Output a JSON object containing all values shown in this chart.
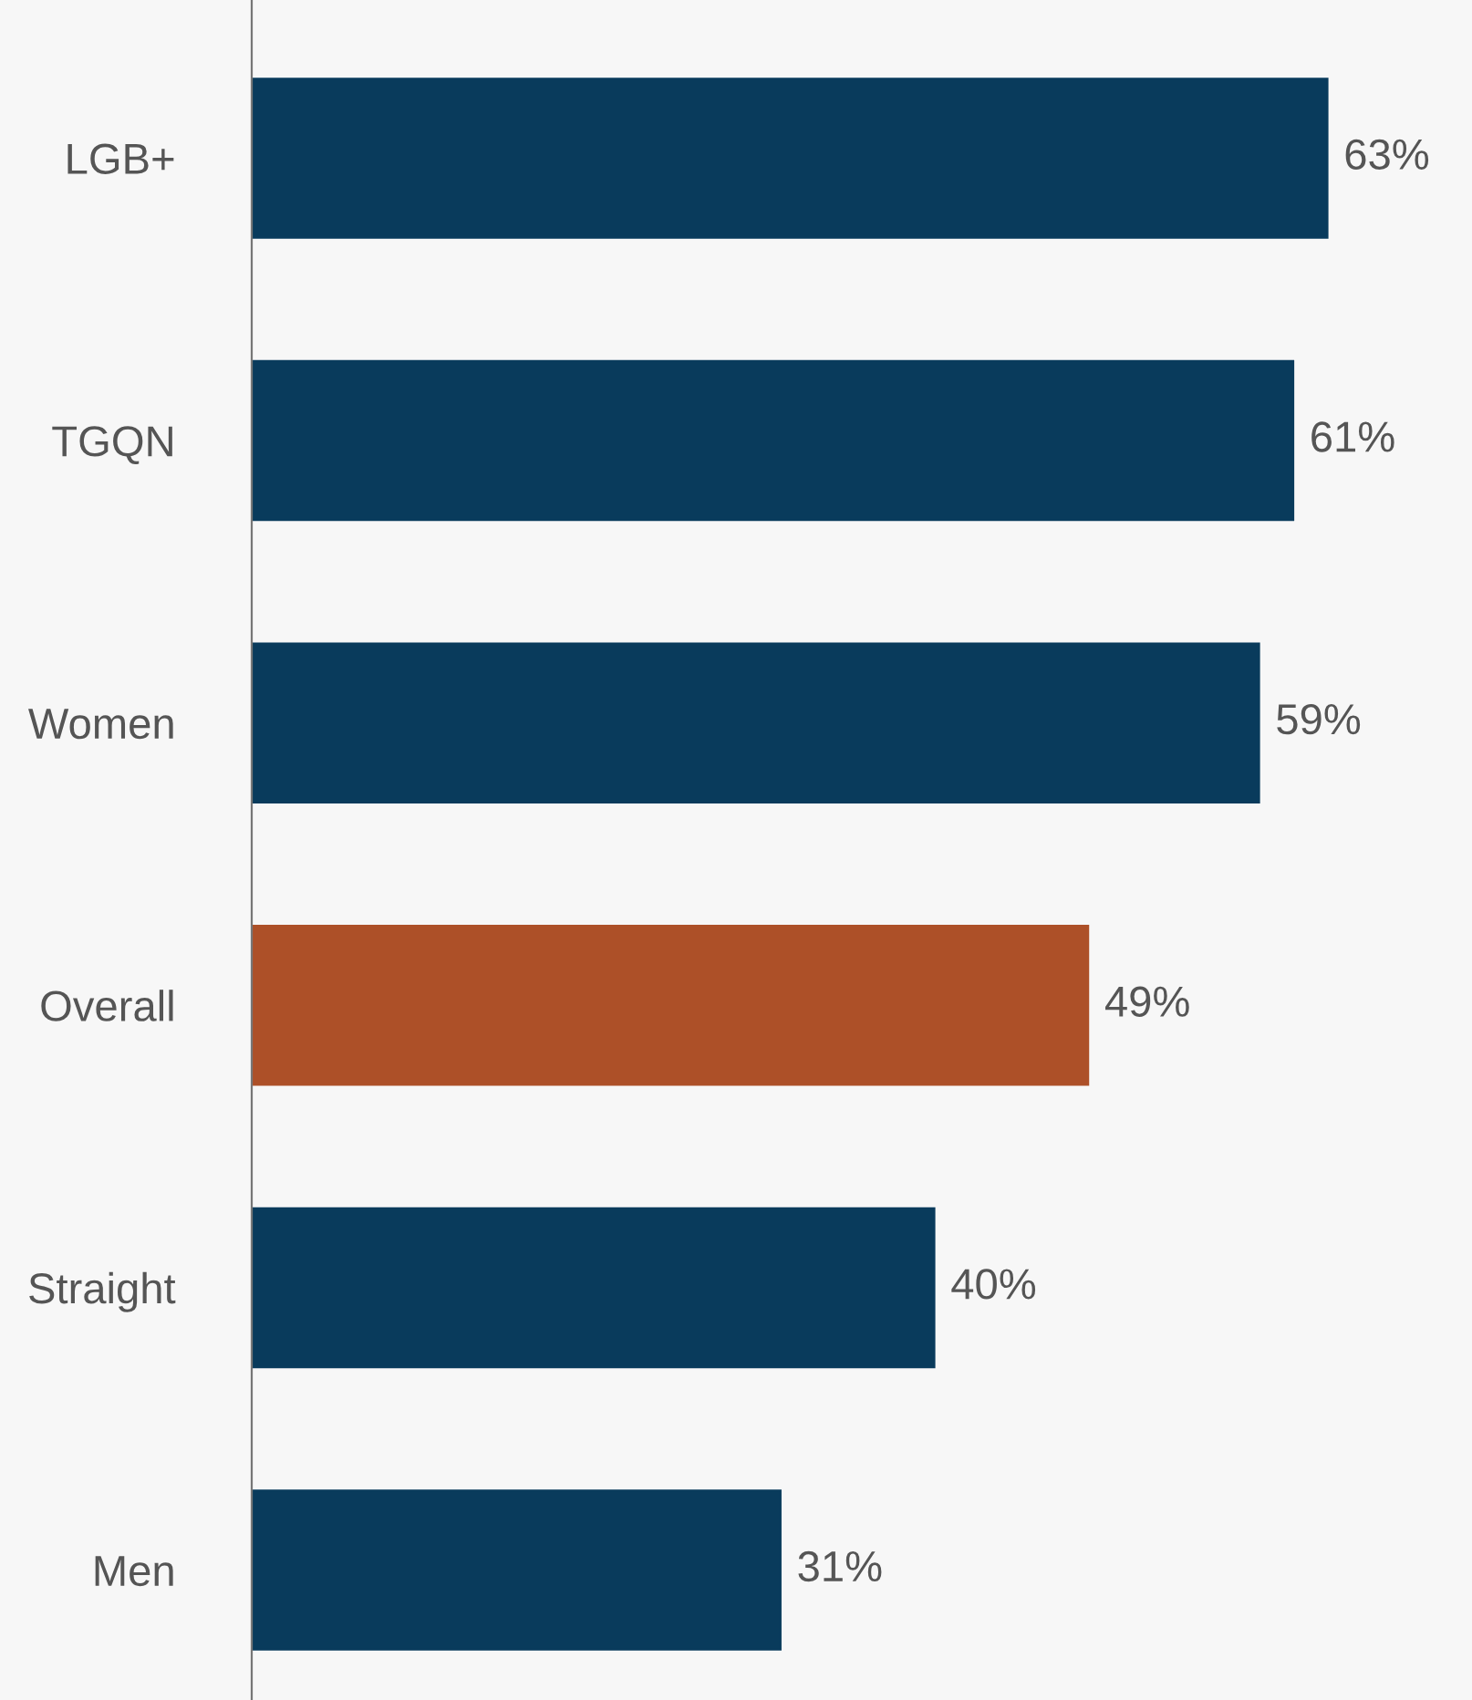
{
  "chart_data": {
    "type": "bar",
    "orientation": "horizontal",
    "categories": [
      "LGB+",
      "TGQN",
      "Women",
      "Overall",
      "Straight",
      "Men"
    ],
    "values": [
      63,
      61,
      59,
      49,
      40,
      31
    ],
    "colors": [
      "#093b5c",
      "#093b5c",
      "#093b5c",
      "#ad5028",
      "#093b5c",
      "#093b5c"
    ],
    "value_labels": [
      "63%",
      "61%",
      "59%",
      "49%",
      "40%",
      "31%"
    ],
    "xlim": [
      0,
      71.4
    ],
    "grid": false,
    "legend": false,
    "tick_labels": "y"
  }
}
